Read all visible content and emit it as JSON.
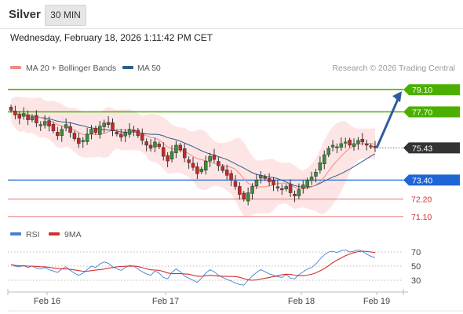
{
  "header": {
    "instrument": "Silver",
    "timeframe_button": "30 MIN"
  },
  "datetime": "Wednesday, February 18, 2026 1:11:42 PM CET",
  "legend": {
    "bollinger": {
      "label": "MA 20 + Bollinger Bands",
      "color": "#f28b82"
    },
    "ma50": {
      "label": "MA 50",
      "color": "#2f5d8c"
    }
  },
  "credit": "Research © 2026 Trading Central",
  "rsi_legend": {
    "rsi": {
      "label": "RSI",
      "color": "#4a7fd4"
    },
    "ma9": {
      "label": "9MA",
      "color": "#d32f2f"
    }
  },
  "colors": {
    "resistance": "#4caf00",
    "pivot": "#1e66d6",
    "support": "#e57373",
    "current": "#333333",
    "arrow": "#2f5d9c",
    "candle_up": "#3c8c3c",
    "candle_down": "#c62828",
    "band_fill": "#fde5e5"
  },
  "chart_data": [
    {
      "type": "candlestick",
      "xlabels": [
        "Feb 16",
        "Feb 17",
        "Feb 18",
        "Feb 19"
      ],
      "ylim": [
        70.6,
        80.0
      ],
      "current_price": "75.43",
      "levels": [
        {
          "label": "79.10",
          "value": 79.1,
          "kind": "resistance"
        },
        {
          "label": "77.70",
          "value": 77.7,
          "kind": "resistance"
        },
        {
          "label": "75.43",
          "value": 75.43,
          "kind": "current"
        },
        {
          "label": "73.40",
          "value": 73.4,
          "kind": "pivot"
        },
        {
          "label": "72.20",
          "value": 72.2,
          "kind": "support"
        },
        {
          "label": "71.10",
          "value": 71.1,
          "kind": "support"
        }
      ],
      "forecast_target": 79.1,
      "close_series": [
        77.8,
        77.5,
        77.3,
        77.6,
        77.2,
        77.4,
        77.0,
        76.9,
        77.1,
        76.8,
        76.5,
        76.2,
        76.6,
        76.9,
        76.4,
        76.0,
        75.7,
        75.9,
        76.3,
        76.6,
        76.4,
        76.8,
        77.0,
        76.9,
        76.5,
        76.3,
        76.1,
        76.4,
        76.6,
        76.5,
        76.2,
        75.9,
        75.6,
        75.4,
        75.8,
        75.5,
        74.9,
        74.6,
        75.2,
        75.6,
        75.3,
        74.8,
        74.5,
        74.2,
        73.8,
        74.1,
        74.6,
        74.9,
        74.7,
        74.3,
        74.0,
        73.7,
        73.4,
        73.0,
        72.5,
        72.2,
        72.6,
        73.0,
        73.4,
        73.7,
        73.5,
        73.3,
        73.1,
        72.9,
        72.8,
        73.0,
        72.6,
        72.4,
        72.8,
        73.1,
        73.4,
        73.6,
        73.9,
        74.5,
        75.0,
        75.4,
        75.6,
        75.5,
        75.7,
        75.8,
        75.6,
        75.7,
        75.9,
        75.8,
        75.6,
        75.5,
        75.43
      ],
      "rsi_scale": [
        70,
        50,
        30
      ],
      "rsi_series": [
        52,
        50,
        49,
        51,
        48,
        50,
        47,
        46,
        48,
        45,
        43,
        41,
        46,
        49,
        44,
        40,
        37,
        40,
        45,
        50,
        48,
        53,
        56,
        54,
        49,
        46,
        44,
        48,
        51,
        50,
        46,
        42,
        39,
        37,
        43,
        40,
        34,
        32,
        41,
        46,
        42,
        36,
        33,
        30,
        27,
        33,
        40,
        45,
        42,
        37,
        34,
        31,
        29,
        26,
        24,
        23,
        30,
        36,
        41,
        45,
        42,
        39,
        37,
        35,
        34,
        38,
        33,
        32,
        38,
        42,
        46,
        48,
        53,
        60,
        66,
        70,
        71,
        69,
        72,
        73,
        70,
        71,
        73,
        71,
        67,
        64,
        62
      ]
    }
  ]
}
